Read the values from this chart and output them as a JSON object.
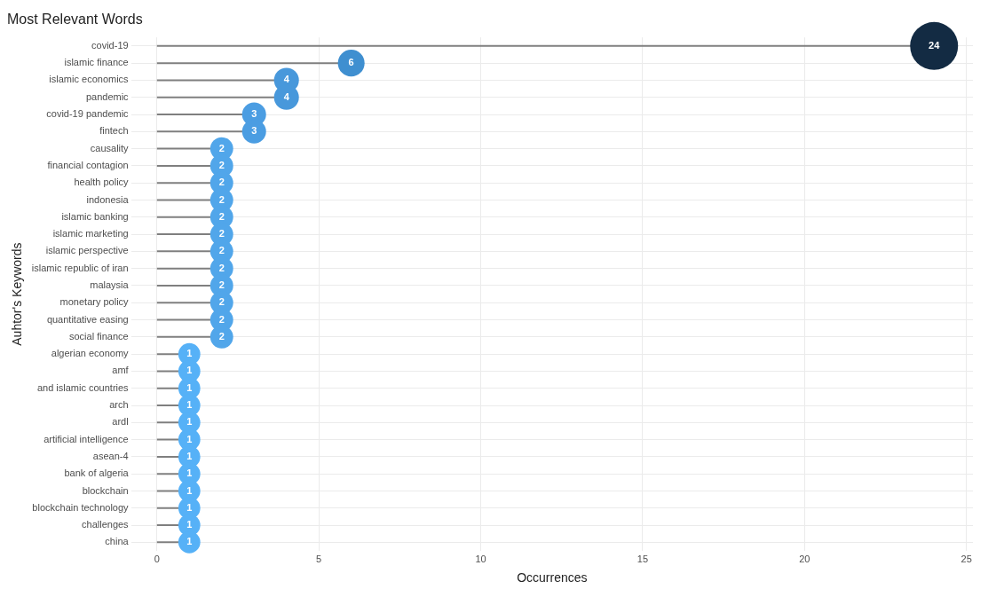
{
  "chart_data": {
    "type": "lollipop",
    "title": "Most Relevant Words",
    "xlabel": "Occurrences",
    "ylabel": "Auhtor's Keywords",
    "orientation": "horizontal",
    "categories": [
      "covid-19",
      "islamic finance",
      "islamic economics",
      "pandemic",
      "covid-19 pandemic",
      "fintech",
      "causality",
      "financial contagion",
      "health policy",
      "indonesia",
      "islamic banking",
      "islamic marketing",
      "islamic perspective",
      "islamic republic of iran",
      "malaysia",
      "monetary policy",
      "quantitative easing",
      "social finance",
      "algerian economy",
      "amf",
      "and islamic countries",
      "arch",
      "ardl",
      "artificial intelligence",
      "asean-4",
      "bank of algeria",
      "blockchain",
      "blockchain technology",
      "challenges",
      "china"
    ],
    "values": [
      24,
      6,
      4,
      4,
      3,
      3,
      2,
      2,
      2,
      2,
      2,
      2,
      2,
      2,
      2,
      2,
      2,
      2,
      1,
      1,
      1,
      1,
      1,
      1,
      1,
      1,
      1,
      1,
      1,
      1
    ],
    "colors": [
      "#132b43",
      "#3f8fd0",
      "#4898db",
      "#4898db",
      "#4b9de2",
      "#4b9de2",
      "#51a6ea",
      "#51a6ea",
      "#51a6ea",
      "#51a6ea",
      "#51a6ea",
      "#51a6ea",
      "#51a6ea",
      "#51a6ea",
      "#51a6ea",
      "#51a6ea",
      "#51a6ea",
      "#51a6ea",
      "#56b1f7",
      "#56b1f7",
      "#56b1f7",
      "#56b1f7",
      "#56b1f7",
      "#56b1f7",
      "#56b1f7",
      "#56b1f7",
      "#56b1f7",
      "#56b1f7",
      "#56b1f7",
      "#56b1f7"
    ],
    "sizes": [
      1,
      0.31,
      0.27,
      0.27,
      0.25,
      0.25,
      0.23,
      0.23,
      0.23,
      0.23,
      0.23,
      0.23,
      0.23,
      0.23,
      0.23,
      0.23,
      0.23,
      0.23,
      0.21,
      0.21,
      0.21,
      0.21,
      0.21,
      0.21,
      0.21,
      0.21,
      0.21,
      0.21,
      0.21,
      0.21
    ],
    "xlim": [
      -0.8,
      25.2
    ],
    "xticks": [
      0,
      5,
      10,
      15,
      20,
      25
    ],
    "grid": true,
    "data_labels": true
  }
}
